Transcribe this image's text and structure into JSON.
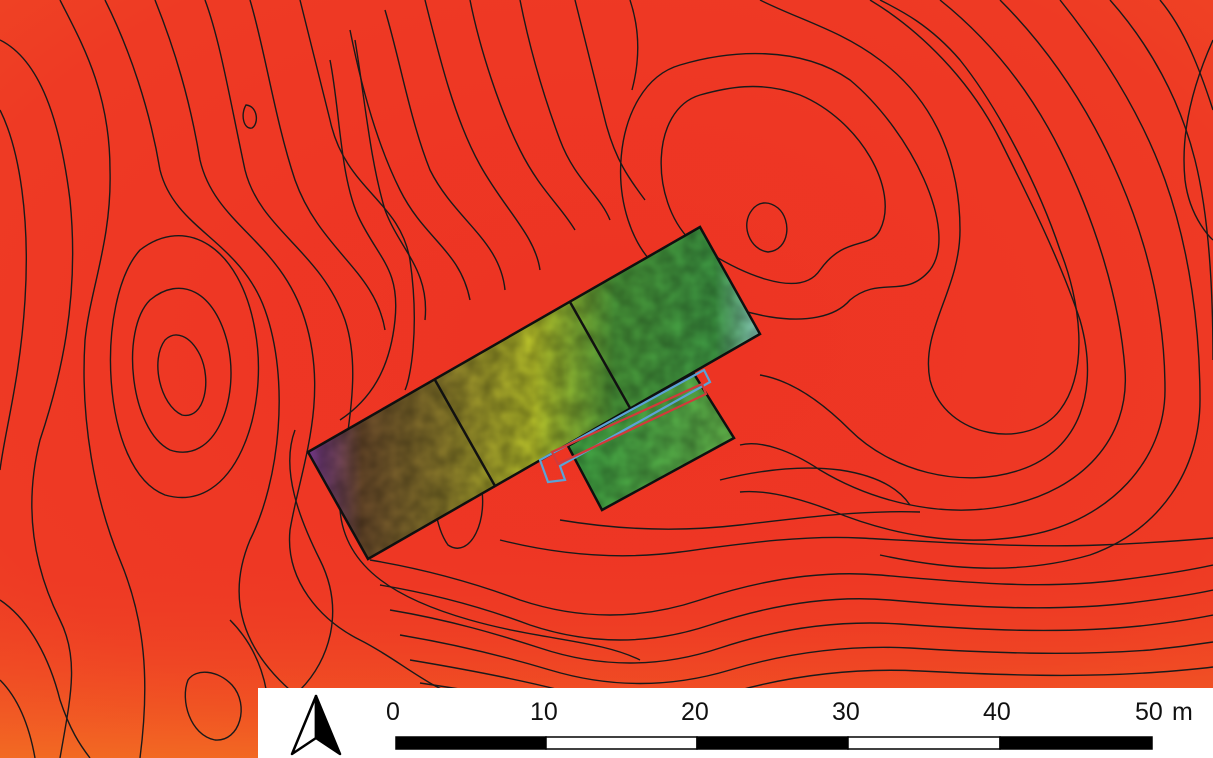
{
  "colors": {
    "terrain_base": "#ee3a24",
    "terrain_light": "#f25a22",
    "contour_line": "#1a1a1a",
    "plot_outline": "#111111",
    "inner_outline_blue": "#5ba3d6",
    "inner_outline_red": "#d23a3a",
    "scale_black": "#000000",
    "scale_white": "#ffffff"
  },
  "north_arrow": {
    "icon": "north-arrow-icon"
  },
  "scale_bar": {
    "ticks": [
      "0",
      "10",
      "20",
      "30",
      "40",
      "50"
    ],
    "unit": "m",
    "segments": 5
  }
}
